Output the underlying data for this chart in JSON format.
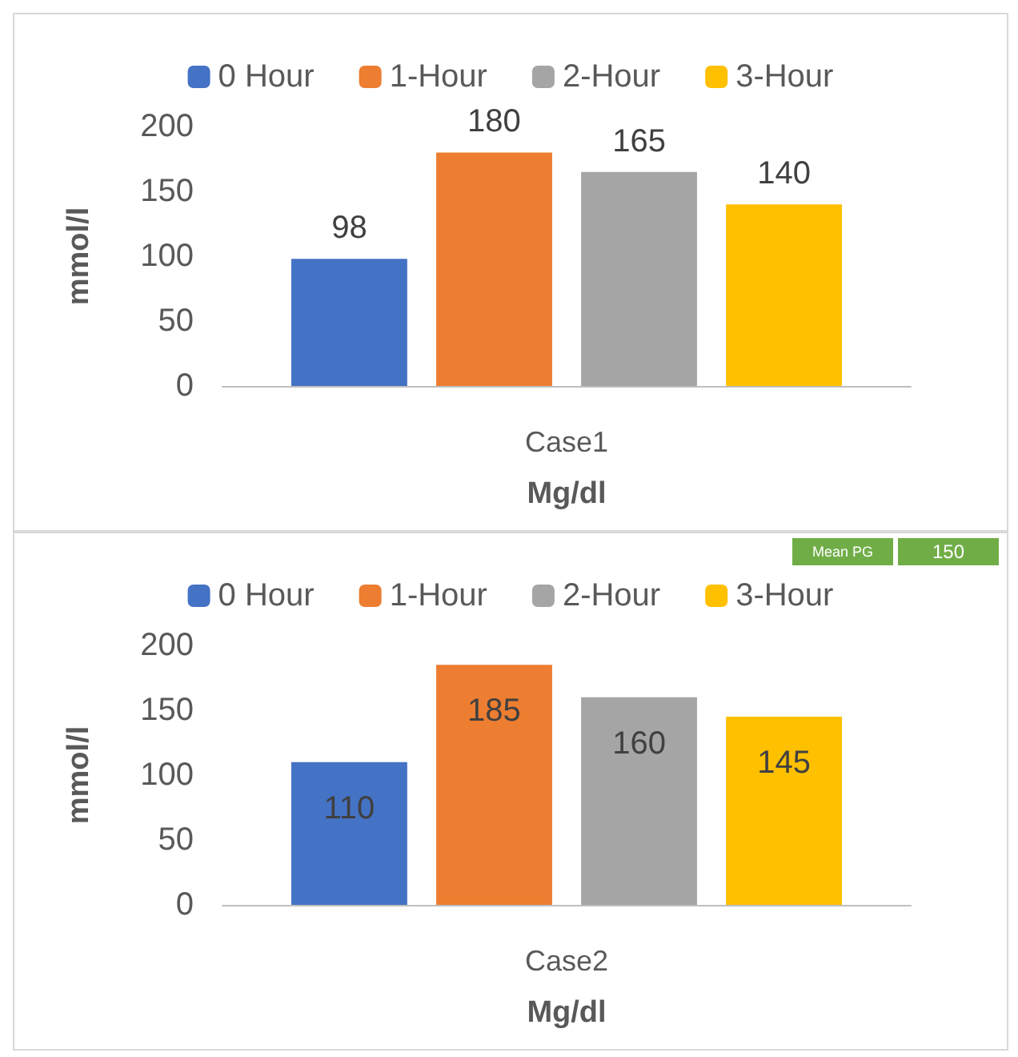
{
  "chart_data": [
    {
      "type": "bar",
      "categories": [
        "Case1"
      ],
      "xlabel": "Mg/dl",
      "ylabel": "mmol/l",
      "ylim": [
        0,
        200
      ],
      "yticks": [
        0,
        50,
        100,
        150,
        200
      ],
      "grid": false,
      "legend": "top",
      "data_labels": true,
      "series": [
        {
          "name": "0 Hour",
          "color": "#4472c4",
          "values": [
            98
          ]
        },
        {
          "name": "1-Hour",
          "color": "#ed7d31",
          "values": [
            180
          ]
        },
        {
          "name": "2-Hour",
          "color": "#a5a5a5",
          "values": [
            165
          ]
        },
        {
          "name": "3-Hour",
          "color": "#ffc000",
          "values": [
            140
          ]
        }
      ]
    },
    {
      "type": "bar",
      "categories": [
        "Case2"
      ],
      "xlabel": "Mg/dl",
      "ylabel": "mmol/l",
      "ylim": [
        0,
        200
      ],
      "yticks": [
        0,
        50,
        100,
        150,
        200
      ],
      "grid": false,
      "legend": "top",
      "data_labels": true,
      "annotations": [
        "Mean PG",
        "150"
      ],
      "series": [
        {
          "name": "0 Hour",
          "color": "#4472c4",
          "values": [
            110
          ]
        },
        {
          "name": "1-Hour",
          "color": "#ed7d31",
          "values": [
            185
          ]
        },
        {
          "name": "2-Hour",
          "color": "#a5a5a5",
          "values": [
            160
          ]
        },
        {
          "name": "3-Hour",
          "color": "#ffc000",
          "values": [
            145
          ]
        }
      ]
    }
  ]
}
